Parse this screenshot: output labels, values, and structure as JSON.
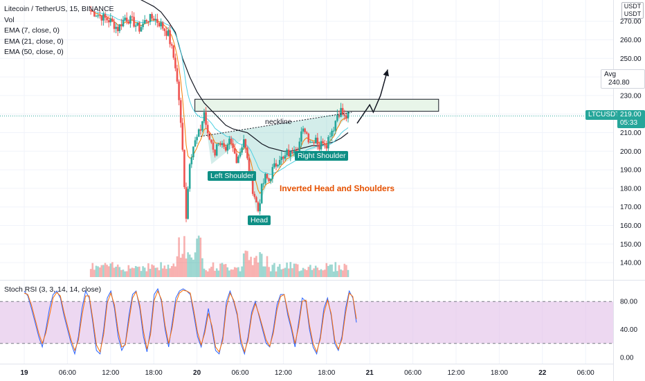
{
  "header": {
    "title": "Litecoin / TetherUS, 15, BINANCE",
    "vol_label": "Vol",
    "ema_labels": [
      "EMA (7, close, 0)",
      "EMA (21, close, 0)",
      "EMA (50, close, 0)"
    ],
    "rsi_label": "Stoch RSI (3, 3, 14, 14, close)"
  },
  "axis": {
    "unit_line1": "USDT",
    "unit_line2": "USDT",
    "price_ticks": [
      "270.00",
      "260.00",
      "250.00",
      "240.00",
      "230.00",
      "220.00",
      "210.00",
      "200.00",
      "190.00",
      "180.00",
      "170.00",
      "160.00",
      "150.00",
      "140.00"
    ],
    "rsi_ticks": [
      "80.00",
      "40.00",
      "0.00"
    ],
    "time_ticks": [
      "19",
      "06:00",
      "12:00",
      "18:00",
      "20",
      "06:00",
      "12:00",
      "18:00",
      "21",
      "06:00",
      "12:00",
      "18:00",
      "22",
      "06:00"
    ]
  },
  "tags": {
    "avg_label": "Avg",
    "avg_value": "240.80",
    "symbol": "LTCUSDT",
    "last_price": "219.00",
    "countdown": "05:33"
  },
  "annotations": {
    "neckline": "neckline",
    "left_shoulder": "Left Shoulder",
    "head": "Head",
    "right_shoulder": "Right Shoulder",
    "pattern": "Inverted Head and Shoulders"
  },
  "colors": {
    "up": "#26a69a",
    "down": "#ef5350",
    "ema7": "#f57c00",
    "ema21": "#4dd0e1",
    "ema50": "#131722",
    "rsi_k": "#2962ff",
    "rsi_d": "#ff6d00",
    "rsi_band": "#e1bee7",
    "zone": "#e8f5e9"
  },
  "chart_data": {
    "type": "candlestick",
    "symbol": "LTCUSDT",
    "interval": "15",
    "exchange": "BINANCE",
    "price_range": [
      130,
      278
    ],
    "last_price": 219.0,
    "avg_price": 240.8,
    "resistance_zone": [
      221.5,
      228
    ],
    "neckline": {
      "from": [
        "20 00:30",
        208
      ],
      "to": [
        "20 21:30",
        221
      ]
    },
    "pattern_points": {
      "left_shoulder": [
        "20 02:00",
        193
      ],
      "head": [
        "20 08:15",
        167
      ],
      "right_shoulder": [
        "20 14:00",
        198
      ]
    },
    "projection": [
      [
        "20 22:15",
        215
      ],
      [
        "21 00:00",
        225
      ],
      [
        "21 00:30",
        221
      ],
      [
        "21 01:30",
        230
      ],
      [
        "21 02:30",
        244
      ]
    ],
    "close_path": [
      [
        "19 09:00",
        276
      ],
      [
        "19 10:00",
        274
      ],
      [
        "19 11:00",
        272
      ],
      [
        "19 12:00",
        270
      ],
      [
        "19 13:00",
        266
      ],
      [
        "19 14:00",
        272
      ],
      [
        "19 15:00",
        270
      ],
      [
        "19 16:00",
        266
      ],
      [
        "19 17:00",
        271
      ],
      [
        "19 18:00",
        272
      ],
      [
        "19 19:00",
        268
      ],
      [
        "19 20:00",
        263
      ],
      [
        "19 20:30",
        255
      ],
      [
        "19 21:00",
        246
      ],
      [
        "19 21:30",
        228
      ],
      [
        "19 22:00",
        200
      ],
      [
        "19 22:30",
        165
      ],
      [
        "19 23:00",
        195
      ],
      [
        "19 23:30",
        203
      ],
      [
        "20 00:00",
        207
      ],
      [
        "20 00:30",
        212
      ],
      [
        "20 01:00",
        221
      ],
      [
        "20 01:30",
        208
      ],
      [
        "20 02:00",
        205
      ],
      [
        "20 02:30",
        199
      ],
      [
        "20 03:00",
        206
      ],
      [
        "20 03:30",
        203
      ],
      [
        "20 04:00",
        198
      ],
      [
        "20 04:30",
        205
      ],
      [
        "20 05:00",
        201
      ],
      [
        "20 05:30",
        196
      ],
      [
        "20 06:00",
        200
      ],
      [
        "20 06:30",
        207
      ],
      [
        "20 07:00",
        195
      ],
      [
        "20 07:30",
        183
      ],
      [
        "20 08:00",
        176
      ],
      [
        "20 08:30",
        168
      ],
      [
        "20 09:00",
        180
      ],
      [
        "20 09:30",
        186
      ],
      [
        "20 10:00",
        184
      ],
      [
        "20 10:30",
        190
      ],
      [
        "20 11:00",
        193
      ],
      [
        "20 11:30",
        197
      ],
      [
        "20 12:00",
        195
      ],
      [
        "20 12:30",
        199
      ],
      [
        "20 13:00",
        198
      ],
      [
        "20 13:30",
        203
      ],
      [
        "20 14:00",
        201
      ],
      [
        "20 14:30",
        209
      ],
      [
        "20 15:00",
        212
      ],
      [
        "20 15:30",
        207
      ],
      [
        "20 16:00",
        205
      ],
      [
        "20 16:30",
        208
      ],
      [
        "20 17:00",
        202
      ],
      [
        "20 17:30",
        206
      ],
      [
        "20 18:00",
        204
      ],
      [
        "20 18:30",
        210
      ],
      [
        "20 19:00",
        213
      ],
      [
        "20 19:30",
        220
      ],
      [
        "20 20:00",
        222
      ],
      [
        "20 20:30",
        218
      ],
      [
        "20 21:00",
        219
      ]
    ],
    "ema50": [
      [
        "19 15:00",
        287
      ],
      [
        "19 16:00",
        282
      ],
      [
        "19 17:00",
        280
      ],
      [
        "19 18:00",
        278
      ],
      [
        "19 19:00",
        275
      ],
      [
        "19 20:00",
        270
      ],
      [
        "19 21:00",
        264
      ],
      [
        "19 22:00",
        250
      ],
      [
        "19 23:00",
        240
      ],
      [
        "20 00:00",
        232
      ],
      [
        "20 01:00",
        226
      ],
      [
        "20 02:00",
        222
      ],
      [
        "20 03:00",
        218
      ],
      [
        "20 04:00",
        214
      ],
      [
        "20 05:00",
        212
      ],
      [
        "20 06:00",
        211
      ],
      [
        "20 07:00",
        210
      ],
      [
        "20 08:00",
        207
      ],
      [
        "20 09:00",
        204
      ],
      [
        "20 10:00",
        202
      ],
      [
        "20 11:00",
        201
      ],
      [
        "20 12:00",
        200
      ],
      [
        "20 13:00",
        200
      ],
      [
        "20 14:00",
        201
      ],
      [
        "20 15:00",
        202
      ],
      [
        "20 16:00",
        203
      ],
      [
        "20 17:00",
        203
      ],
      [
        "20 18:00",
        204
      ],
      [
        "20 19:00",
        205
      ],
      [
        "20 20:00",
        207
      ],
      [
        "20 21:00",
        210
      ]
    ],
    "rsi_range": [
      -10,
      100
    ],
    "rsi_bands": [
      20,
      80
    ],
    "stoch_k": [
      95,
      88,
      70,
      50,
      30,
      15,
      40,
      70,
      90,
      95,
      85,
      60,
      40,
      20,
      5,
      30,
      70,
      95,
      85,
      50,
      10,
      5,
      40,
      85,
      95,
      70,
      30,
      10,
      20,
      60,
      90,
      95,
      70,
      30,
      8,
      40,
      90,
      98,
      80,
      40,
      15,
      50,
      85,
      95,
      98,
      95,
      90,
      60,
      30,
      15,
      40,
      70,
      40,
      10,
      5,
      30,
      80,
      95,
      80,
      60,
      20,
      5,
      30,
      65,
      80,
      60,
      40,
      20,
      15,
      40,
      75,
      90,
      90,
      60,
      40,
      15,
      50,
      85,
      80,
      40,
      15,
      5,
      30,
      70,
      85,
      60,
      20,
      10,
      30,
      70,
      95,
      85,
      50
    ],
    "stoch_d": [
      92,
      90,
      75,
      55,
      35,
      20,
      35,
      60,
      85,
      93,
      88,
      65,
      45,
      25,
      10,
      25,
      60,
      88,
      88,
      55,
      18,
      8,
      33,
      78,
      92,
      75,
      38,
      15,
      18,
      52,
      85,
      94,
      75,
      38,
      12,
      33,
      82,
      95,
      83,
      46,
      20,
      43,
      78,
      92,
      96,
      95,
      92,
      66,
      36,
      18,
      35,
      63,
      45,
      15,
      8,
      25,
      72,
      92,
      82,
      63,
      26,
      8,
      25,
      60,
      77,
      62,
      44,
      25,
      16,
      35,
      68,
      87,
      90,
      65,
      44,
      20,
      44,
      80,
      82,
      46,
      20,
      8,
      26,
      63,
      82,
      63,
      25,
      12,
      26,
      63,
      92,
      87,
      55
    ]
  }
}
